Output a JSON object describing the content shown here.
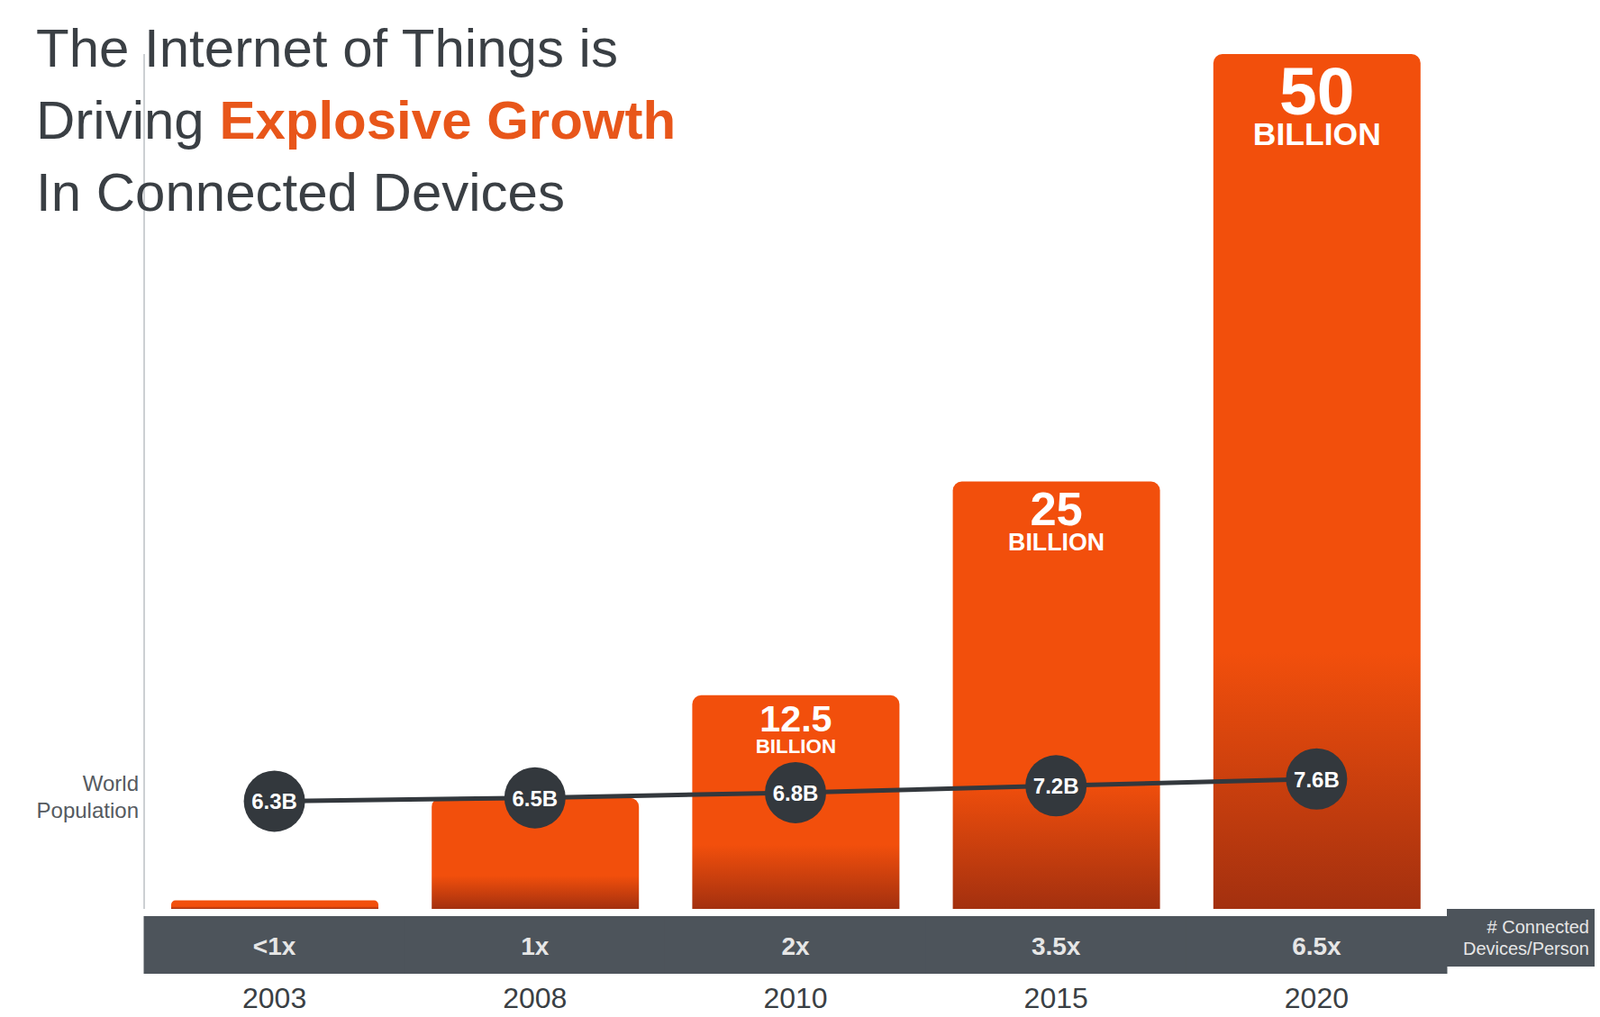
{
  "chart_data": {
    "type": "bar",
    "title": [
      "The Internet of Things is",
      "Driving",
      "Explosive Growth",
      "In Connected Devices"
    ],
    "categories": [
      "2003",
      "2008",
      "2010",
      "2015",
      "2020"
    ],
    "series": [
      {
        "type": "bar",
        "color": "#f24f0c",
        "values": [
          0.5,
          6.5,
          12.5,
          25,
          50
        ],
        "value_labels": [
          null,
          null,
          "12.5 BILLION",
          "25 BILLION",
          "50 BILLION"
        ]
      },
      {
        "name": "World Population",
        "type": "line",
        "color": "#33383d",
        "values": [
          6.3,
          6.5,
          6.8,
          7.2,
          7.6
        ],
        "value_labels": [
          "6.3B",
          "6.5B",
          "6.8B",
          "7.2B",
          "7.6B"
        ]
      }
    ],
    "devices_per_person": {
      "name": "# Connected Devices/Person",
      "labels": [
        "<1x",
        "1x",
        "2x",
        "3.5x",
        "6.5x"
      ]
    },
    "ylim": [
      0,
      50
    ],
    "tick_labels": "x",
    "data_labels": true,
    "grid": false
  }
}
